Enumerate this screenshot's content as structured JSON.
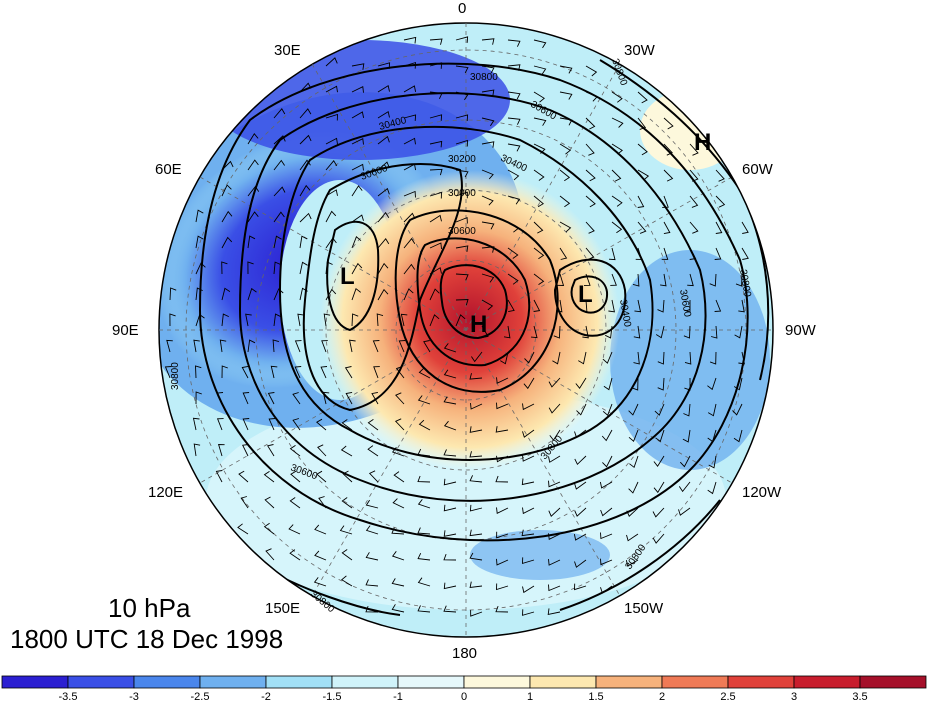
{
  "map": {
    "title_level": "10 hPa",
    "title_time": "1800 UTC 18 Dec 1998",
    "longitude_labels": [
      "0",
      "30W",
      "60W",
      "90W",
      "120W",
      "150W",
      "180",
      "150E",
      "120E",
      "90E",
      "60E",
      "30E"
    ],
    "contour_labels": [
      "30800",
      "30600",
      "30400",
      "30200",
      "30000",
      "30600",
      "30800",
      "30400",
      "30600",
      "30800",
      "30600",
      "30800",
      "30800",
      "30800",
      "30600",
      "30400",
      "30800"
    ],
    "pressure_systems": [
      {
        "label": "H",
        "type": "high"
      },
      {
        "label": "H",
        "type": "high"
      },
      {
        "label": "L",
        "type": "low"
      },
      {
        "label": "L",
        "type": "low"
      }
    ]
  },
  "colorbar": {
    "tick_labels": [
      "-3.5",
      "-3",
      "-2.5",
      "-2",
      "-1.5",
      "-1",
      "0",
      "1",
      "1.5",
      "2",
      "2.5",
      "3",
      "3.5"
    ],
    "colors": [
      "#2b1fd1",
      "#3a4fe6",
      "#4a86ec",
      "#6fb0ef",
      "#a2e0f6",
      "#d0f3fa",
      "#e6f8fb",
      "#fdf8dc",
      "#fde8b0",
      "#f6b27c",
      "#ef7a56",
      "#e0413a",
      "#c81d2d",
      "#a5102a"
    ]
  }
}
